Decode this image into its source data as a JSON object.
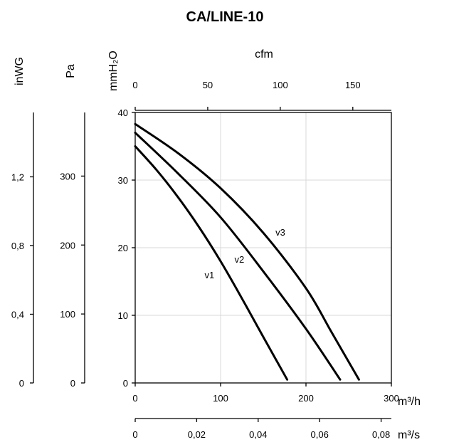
{
  "chart_data": {
    "type": "line",
    "title": "CA/LINE-10",
    "xlabel": "m³/h",
    "ylabel": "mmH₂O",
    "xlim": [
      0,
      300
    ],
    "ylim": [
      0,
      40
    ],
    "x_ticks": [
      0,
      100,
      200,
      300
    ],
    "y_ticks": [
      0,
      10,
      20,
      30,
      40
    ],
    "grid": true,
    "secondary_axes": {
      "top": {
        "label": "cfm",
        "ticks": [
          0,
          50,
          100,
          150
        ],
        "per_m3h": 0.5886
      },
      "bottom": {
        "label": "m³/s",
        "ticks": [
          "0",
          "0,02",
          "0,04",
          "0,06",
          "0,08"
        ],
        "values": [
          0,
          0.02,
          0.04,
          0.06,
          0.08
        ],
        "per_m3h": 0.000277778
      },
      "pa": {
        "label": "Pa",
        "ticks": [
          0,
          100,
          200,
          300
        ],
        "per_mm": 9.80665
      },
      "inwg": {
        "label": "inWG",
        "ticks": [
          "0",
          "0,4",
          "0,8",
          "1,2"
        ],
        "values": [
          0,
          0.4,
          0.8,
          1.2
        ],
        "per_mm": 0.03937
      }
    },
    "series": [
      {
        "name": "v1",
        "points": [
          [
            0,
            35.0
          ],
          [
            25,
            31.5
          ],
          [
            50,
            27.5
          ],
          [
            75,
            23.0
          ],
          [
            100,
            18.0
          ],
          [
            125,
            12.5
          ],
          [
            150,
            6.8
          ],
          [
            178,
            0.5
          ]
        ],
        "label_at": [
          87,
          15.5
        ]
      },
      {
        "name": "v2",
        "points": [
          [
            0,
            37.0
          ],
          [
            50,
            31.0
          ],
          [
            100,
            24.5
          ],
          [
            150,
            16.5
          ],
          [
            200,
            8.0
          ],
          [
            240,
            0.5
          ]
        ],
        "label_at": [
          122,
          17.8
        ]
      },
      {
        "name": "v3",
        "points": [
          [
            0,
            38.3
          ],
          [
            50,
            34.0
          ],
          [
            100,
            28.8
          ],
          [
            150,
            22.2
          ],
          [
            200,
            14.0
          ],
          [
            230,
            7.5
          ],
          [
            262,
            0.5
          ]
        ],
        "label_at": [
          170,
          21.8
        ]
      }
    ]
  }
}
